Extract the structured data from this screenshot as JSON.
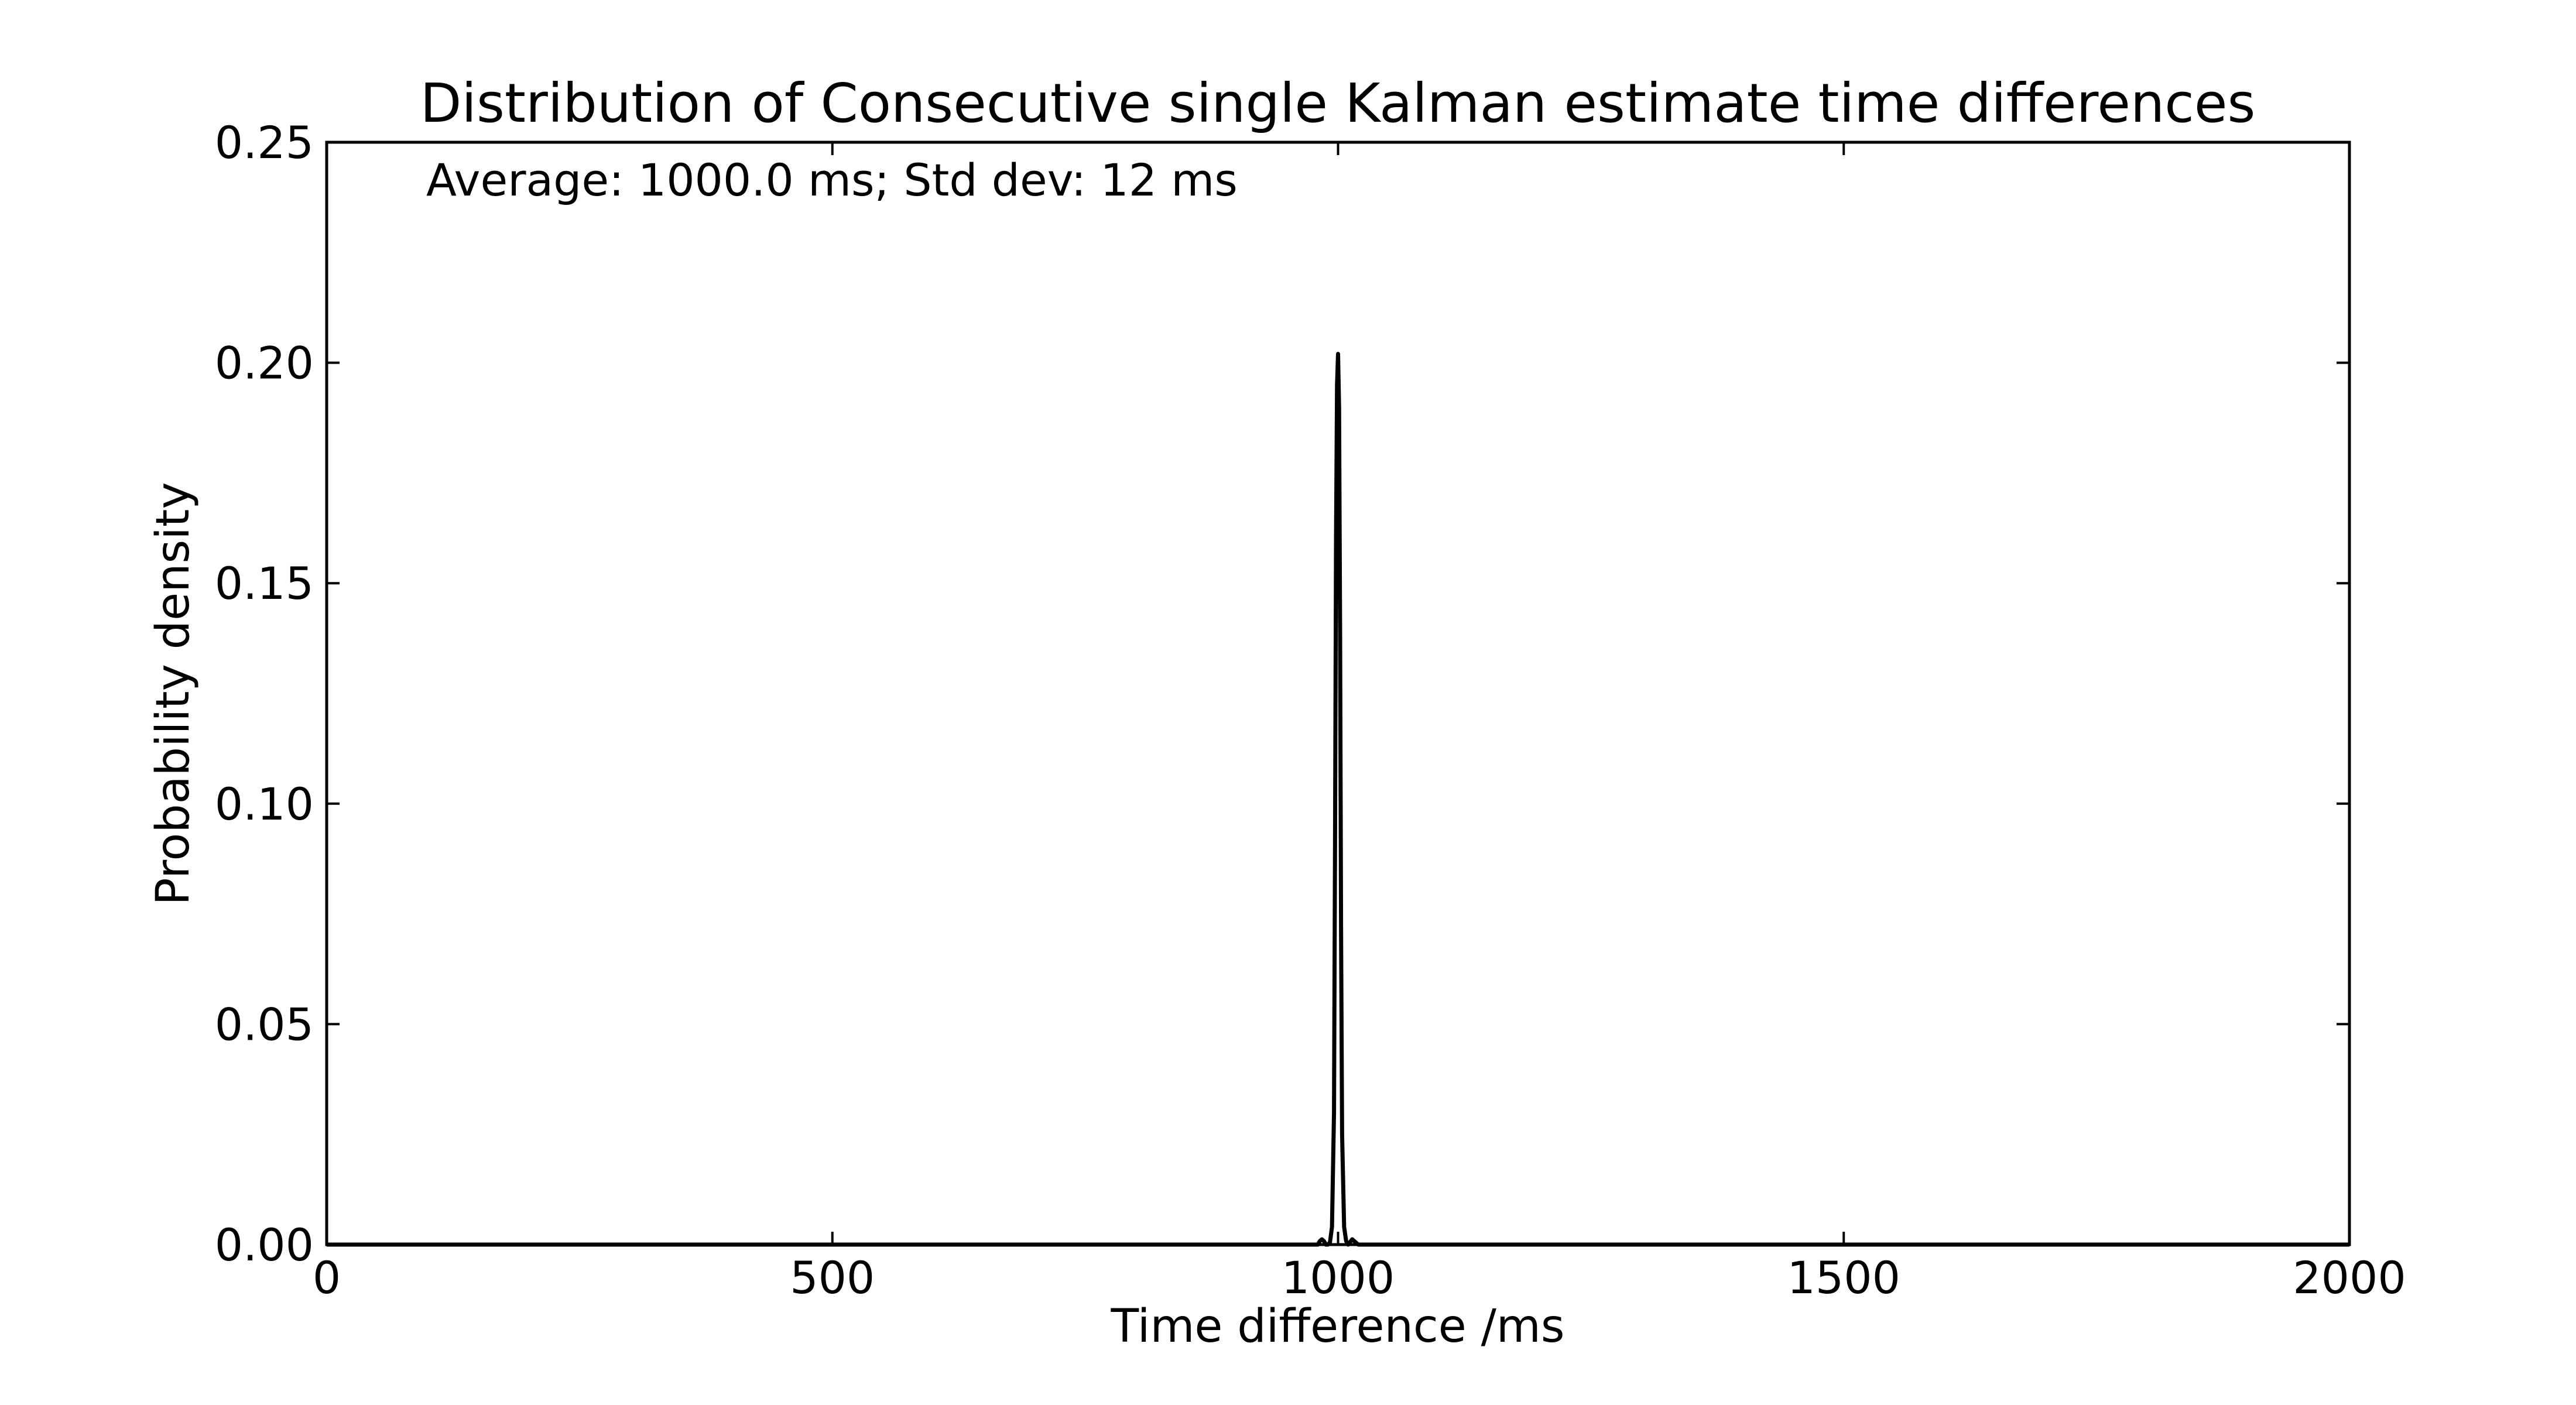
{
  "chart_data": {
    "type": "line",
    "title": "Distribution of Consecutive single Kalman estimate time differences",
    "xlabel": "Time difference /ms",
    "ylabel": "Probability density",
    "xlim": [
      0,
      2000
    ],
    "ylim": [
      0,
      0.25
    ],
    "xticks": [
      0,
      500,
      1000,
      1500,
      2000
    ],
    "xtick_labels": [
      "0",
      "500",
      "1000",
      "1500",
      "2000"
    ],
    "yticks": [
      0,
      0.05,
      0.1,
      0.15,
      0.2,
      0.25
    ],
    "ytick_labels": [
      "0.00",
      "0.05",
      "0.10",
      "0.15",
      "0.20",
      "0.25"
    ],
    "grid": false,
    "annotation": "Average: 1000.0 ms;  Std dev: 12 ms",
    "series": [
      {
        "color": "#000000",
        "x": [
          0,
          980,
          982,
          984,
          986,
          988,
          990,
          992,
          994,
          996,
          997,
          998,
          999,
          1000,
          1001,
          1002,
          1003,
          1004,
          1006,
          1008,
          1010,
          1012,
          1014,
          1016,
          1018,
          1020,
          1022,
          1024,
          2000
        ],
        "y": [
          0,
          0,
          0.0008,
          0.0012,
          0.0008,
          0,
          0,
          0.0005,
          0.004,
          0.03,
          0.09,
          0.16,
          0.195,
          0.202,
          0.19,
          0.14,
          0.07,
          0.025,
          0.004,
          0.0008,
          0,
          0.0006,
          0.0012,
          0.0008,
          0.0004,
          0,
          0,
          0,
          0
        ]
      }
    ]
  }
}
